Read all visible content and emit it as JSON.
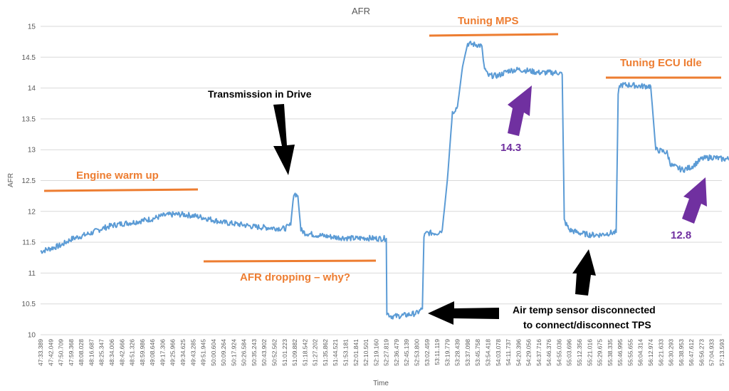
{
  "chart_data": {
    "type": "line",
    "title": "AFR",
    "xlabel": "Time",
    "ylabel": "AFR",
    "ylim": [
      10,
      15
    ],
    "yticks": [
      "10",
      "10.5",
      "11",
      "11.5",
      "12",
      "12.5",
      "13",
      "13.5",
      "14",
      "14.5",
      "15"
    ],
    "grid": "horizontal",
    "line_color": "#5b9bd5",
    "x_tick_labels": [
      "47:33.389",
      "47:42.049",
      "47:50.709",
      "47:59.368",
      "48:08.028",
      "48:16.687",
      "48:25.347",
      "48:34.006",
      "48:42.666",
      "48:51.326",
      "48:59.986",
      "49:08.646",
      "49:17.306",
      "49:25.966",
      "49:34.625",
      "49:43.285",
      "49:51.945",
      "50:00.604",
      "50:09.264",
      "50:17.924",
      "50:26.584",
      "50:35.243",
      "50:43.902",
      "50:52.562",
      "51:01.223",
      "51:09.882",
      "51:18.542",
      "51:27.202",
      "51:35.862",
      "51:44.521",
      "51:53.181",
      "52:01.841",
      "52:10.501",
      "52:19.160",
      "52:27.819",
      "52:36.479",
      "52:45.139",
      "52:53.800",
      "53:02.459",
      "53:11.119",
      "53:19.779",
      "53:28.439",
      "53:37.098",
      "53:45.758",
      "53:54.418",
      "54:03.078",
      "54:11.737",
      "54:20.396",
      "54:29.056",
      "54:37.716",
      "54:46.376",
      "54:55.036",
      "55:03.696",
      "55:12.356",
      "55:21.016",
      "55:29.675",
      "55:38.335",
      "55:46.995",
      "55:55.655",
      "56:04.314",
      "56:12.974",
      "56:21.633",
      "56:30.293",
      "56:38.953",
      "56:47.612",
      "56:56.273",
      "57:04.933",
      "57:13.593"
    ],
    "series": [
      {
        "x_index": [
          0,
          1,
          2,
          3,
          4,
          5,
          6,
          7,
          8,
          9,
          10,
          11,
          12,
          13,
          14,
          15,
          16,
          17,
          18,
          19,
          20,
          21,
          22,
          23,
          24,
          24.6,
          24.9,
          25.3,
          25.6,
          26,
          27,
          28,
          29,
          30,
          31,
          32,
          33,
          34,
          34.05,
          34.5,
          35,
          36,
          37,
          37.55,
          37.7,
          38,
          39,
          39.5,
          40,
          40.5,
          41,
          41.5,
          42,
          43,
          43.4,
          43.6,
          44,
          45,
          46,
          47,
          48,
          49,
          50,
          51,
          51.3,
          51.5,
          52,
          53,
          54,
          55,
          56,
          56.6,
          56.8,
          57,
          58,
          59,
          60,
          60.5,
          61,
          61.3,
          61.6,
          62,
          63,
          63.3,
          64,
          65,
          66,
          67,
          68
        ],
        "values": [
          11.35,
          11.4,
          11.45,
          11.55,
          11.6,
          11.65,
          11.72,
          11.77,
          11.8,
          11.82,
          11.85,
          11.88,
          11.93,
          11.95,
          11.95,
          11.93,
          11.9,
          11.86,
          11.82,
          11.8,
          11.78,
          11.75,
          11.74,
          11.73,
          11.72,
          11.78,
          12.3,
          12.25,
          11.7,
          11.65,
          11.62,
          11.6,
          11.58,
          11.57,
          11.56,
          11.57,
          11.56,
          11.56,
          10.35,
          10.3,
          10.3,
          10.32,
          10.35,
          10.42,
          11.6,
          11.65,
          11.65,
          11.7,
          12.5,
          13.6,
          13.7,
          14.35,
          14.72,
          14.7,
          14.68,
          14.35,
          14.2,
          14.2,
          14.28,
          14.3,
          14.28,
          14.25,
          14.25,
          14.25,
          14.22,
          11.85,
          11.7,
          11.65,
          11.62,
          11.62,
          11.65,
          11.66,
          13.9,
          14.05,
          14.05,
          14.03,
          14.03,
          13.0,
          12.98,
          12.97,
          12.95,
          12.75,
          12.68,
          12.68,
          12.72,
          12.85,
          12.88,
          12.85,
          12.85
        ]
      }
    ],
    "annotations": {
      "engine_warm_up": "Engine warm up",
      "afr_dropping": "AFR dropping – why?",
      "transmission": "Transmission in Drive",
      "tuning_mps": "Tuning MPS",
      "tuning_ecu_idle": "Tuning ECU Idle",
      "value_14_3": "14.3",
      "value_12_8": "12.8",
      "air_temp_line1": "Air temp sensor disconnected",
      "air_temp_line2": "to connect/disconnect TPS"
    },
    "colors": {
      "orange": "#ed7d31",
      "purple": "#7030a0",
      "black": "#000000"
    }
  }
}
